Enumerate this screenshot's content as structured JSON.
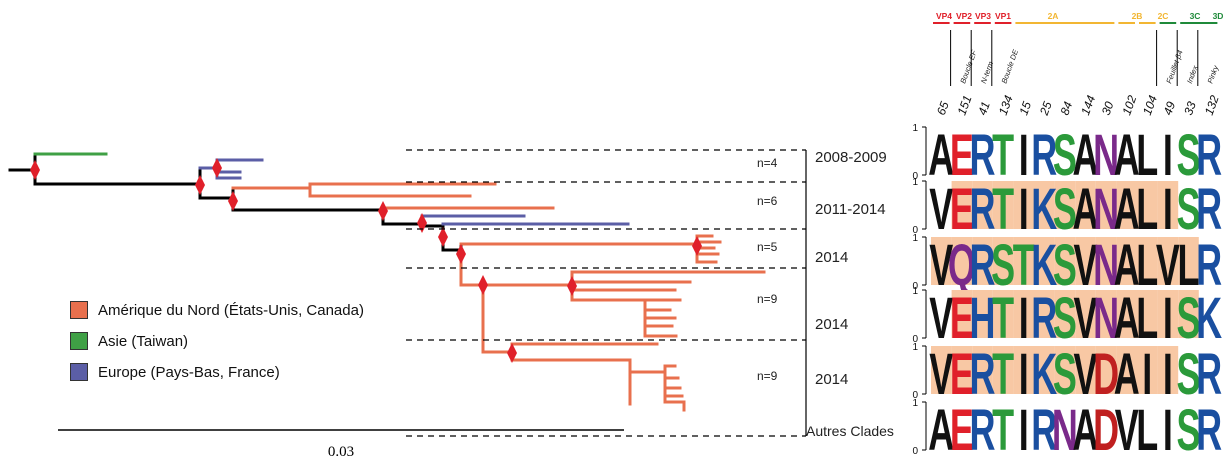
{
  "colors": {
    "north_america": "#e8704e",
    "asia": "#3fa045",
    "europe": "#5b5ea6",
    "trunk": "#000000",
    "node_marker": "#e0202a",
    "logo_bg": "#f8c8a4"
  },
  "legend": [
    {
      "label": "Amérique du Nord (États-Unis, Canada)",
      "color": "#e8704e"
    },
    {
      "label": "Asie (Taiwan)",
      "color": "#3fa045"
    },
    {
      "label": "Europe (Pays-Bas, France)",
      "color": "#5b5ea6"
    }
  ],
  "scale_bar": {
    "label": "0.03"
  },
  "clades": [
    {
      "count": "n=4",
      "period": "2008-2009"
    },
    {
      "count": "n=6",
      "period": "2011-2014"
    },
    {
      "count": "n=5",
      "period": "2014"
    },
    {
      "count": "n=9",
      "period": "2014"
    },
    {
      "count": "n=9",
      "period": "2014"
    },
    {
      "count": "",
      "period": "Autres Clades"
    }
  ],
  "genome_regions": [
    {
      "label": "VP4",
      "color": "#e0202a"
    },
    {
      "label": "VP2",
      "color": "#e0202a"
    },
    {
      "label": "VP3",
      "color": "#e0202a"
    },
    {
      "label": "VP1",
      "color": "#e0202a"
    },
    {
      "label": "2A",
      "color": "#f2b632"
    },
    {
      "label": "2B",
      "color": "#f2b632"
    },
    {
      "label": "2C",
      "color": "#f2b632"
    },
    {
      "label": "3C",
      "color": "#1f8a3a"
    },
    {
      "label": "3D",
      "color": "#1f8a3a"
    }
  ],
  "features": [
    "Boucle EF",
    "N-term",
    "Boucle DE",
    "Feuillet β4",
    "Index",
    "Pinky"
  ],
  "positions": [
    "65",
    "151",
    "41",
    "134",
    "15",
    "25",
    "84",
    "144",
    "30",
    "102",
    "104",
    "49",
    "33",
    "132"
  ],
  "axis_ticks": {
    "top": "1",
    "bottom": "0"
  },
  "logo_rows": [
    [
      "A",
      "E",
      "R",
      "T",
      "I",
      "R",
      "S",
      "A",
      "N",
      "A",
      "L",
      "I",
      "S",
      "R"
    ],
    [
      "V",
      "E",
      "R",
      "T",
      "I",
      "K",
      "S",
      "A",
      "N",
      "A",
      "L",
      "I",
      "S",
      "R"
    ],
    [
      "V",
      "Q",
      "R",
      "S",
      "T",
      "K",
      "S",
      "V",
      "N",
      "A",
      "L",
      "V",
      "L",
      "R"
    ],
    [
      "V",
      "E",
      "H",
      "T",
      "I",
      "R",
      "S",
      "V",
      "N",
      "A",
      "L",
      "I",
      "S",
      "K"
    ],
    [
      "V",
      "E",
      "R",
      "T",
      "I",
      "K",
      "S",
      "V",
      "D",
      "A",
      "I",
      "I",
      "S",
      "R"
    ],
    [
      "A",
      "E",
      "R",
      "T",
      "I",
      "R",
      "N",
      "A",
      "D",
      "V",
      "L",
      "I",
      "S",
      "R"
    ]
  ]
}
